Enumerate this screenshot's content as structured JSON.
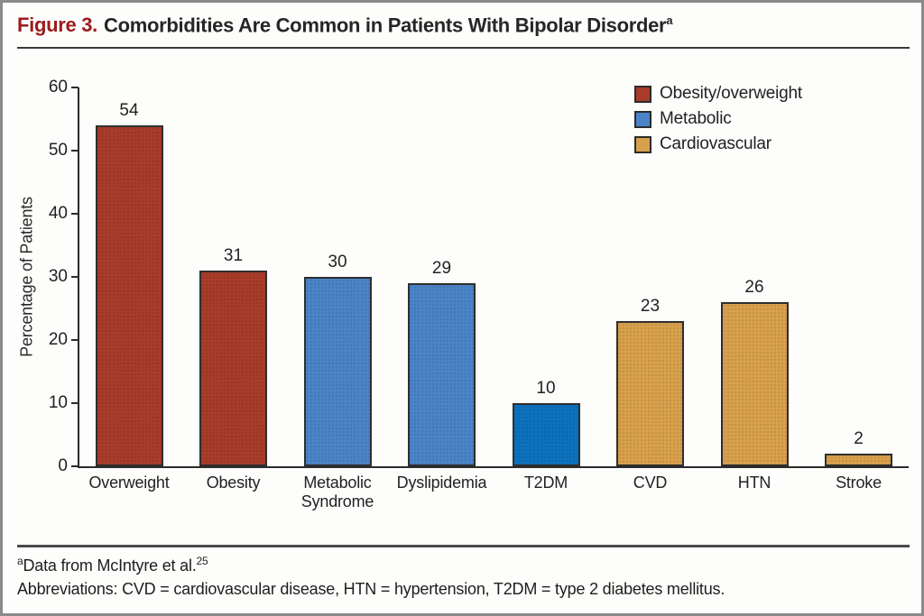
{
  "figure": {
    "label": "Figure 3.",
    "title": "Comorbidities Are Common in Patients With Bipolar Disorder",
    "title_superscript": "a"
  },
  "chart_data": {
    "type": "bar",
    "title": "Comorbidities Are Common in Patients With Bipolar Disorder",
    "xlabel": "",
    "ylabel": "Percentage of Patients",
    "ylim": [
      0,
      60
    ],
    "yticks": [
      0,
      10,
      20,
      30,
      40,
      50,
      60
    ],
    "grid": false,
    "legend_position": "top-right",
    "categories": [
      "Overweight",
      "Obesity",
      "Metabolic Syndrome",
      "Dyslipidemia",
      "T2DM",
      "CVD",
      "HTN",
      "Stroke"
    ],
    "values": [
      54,
      31,
      30,
      29,
      10,
      23,
      26,
      2
    ],
    "bar_groups": [
      "Obesity/overweight",
      "Obesity/overweight",
      "Metabolic",
      "Metabolic",
      "Metabolic",
      "Cardiovascular",
      "Cardiovascular",
      "Cardiovascular"
    ],
    "bar_colors": [
      "#A83C2A",
      "#A83C2A",
      "#4A84C6",
      "#4A84C6",
      "#0C72BE",
      "#D8A04C",
      "#D8A04C",
      "#D8A04C"
    ],
    "legend": [
      {
        "label": "Obesity/overweight",
        "color": "#A83C2A"
      },
      {
        "label": "Metabolic",
        "color": "#4A84C6"
      },
      {
        "label": "Cardiovascular",
        "color": "#D8A04C"
      }
    ]
  },
  "footnotes": {
    "note1_sup": "a",
    "note1_text": "Data from McIntyre et al.",
    "note1_ref_sup": "25",
    "note2": "Abbreviations: CVD = cardiovascular disease, HTN = hypertension, T2DM = type 2 diabetes mellitus."
  },
  "colors": {
    "figure_label": "#9A1C1E",
    "title_text": "#262626",
    "axis": "#2b2b2b",
    "bar_outline": "#2e2e2e",
    "obesity_overweight": "#A83C2A",
    "metabolic": "#4A84C6",
    "t2dm_blue": "#0C72BE",
    "cardiovascular": "#D8A04C",
    "border": "#8a8a8a",
    "background": "#FDFDFB"
  }
}
